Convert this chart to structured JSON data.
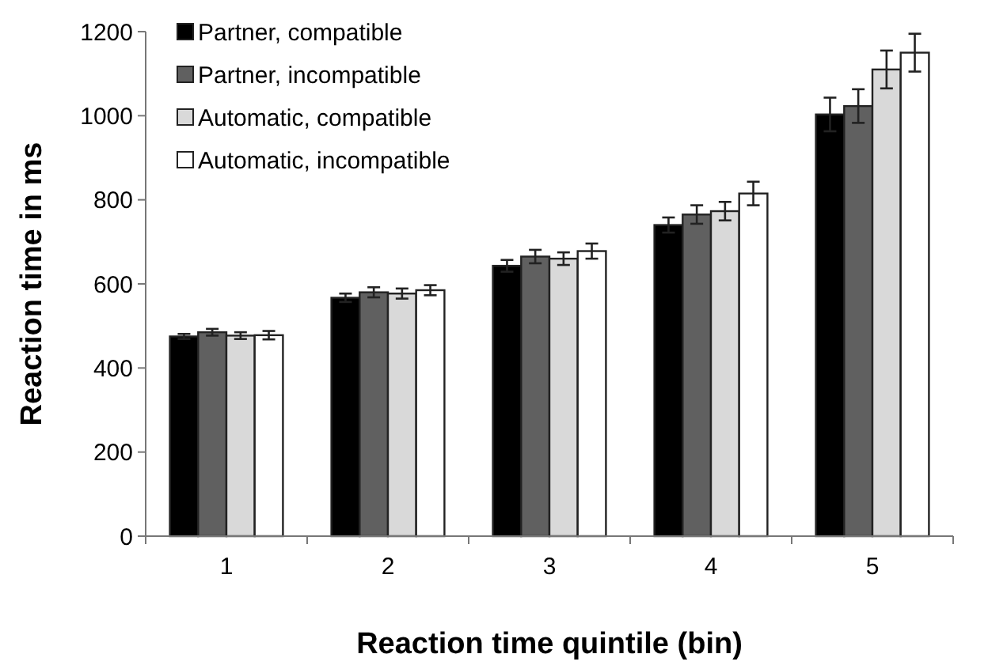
{
  "chart_data": {
    "type": "bar",
    "xlabel": "Reaction time quintile (bin)",
    "ylabel": "Reaction time in ms",
    "categories": [
      "1",
      "2",
      "3",
      "4",
      "5"
    ],
    "series": [
      {
        "name": "Partner, compatible",
        "color": "#000000",
        "values": [
          475,
          567,
          643,
          740,
          1003
        ],
        "errors": [
          6,
          10,
          14,
          18,
          40
        ]
      },
      {
        "name": "Partner, incompatible",
        "color": "#606060",
        "values": [
          485,
          580,
          665,
          765,
          1023
        ],
        "errors": [
          8,
          12,
          16,
          22,
          40
        ]
      },
      {
        "name": "Automatic, compatible",
        "color": "#d9d9d9",
        "values": [
          477,
          577,
          660,
          773,
          1110
        ],
        "errors": [
          8,
          12,
          15,
          22,
          45
        ]
      },
      {
        "name": "Automatic, incompatible",
        "color": "#ffffff",
        "values": [
          478,
          585,
          678,
          815,
          1150
        ],
        "errors": [
          10,
          12,
          18,
          28,
          45
        ]
      }
    ],
    "ylim": [
      0,
      1200
    ],
    "yticks": [
      0,
      200,
      400,
      600,
      800,
      1000,
      1200
    ],
    "grid": false,
    "legend": "top left"
  }
}
